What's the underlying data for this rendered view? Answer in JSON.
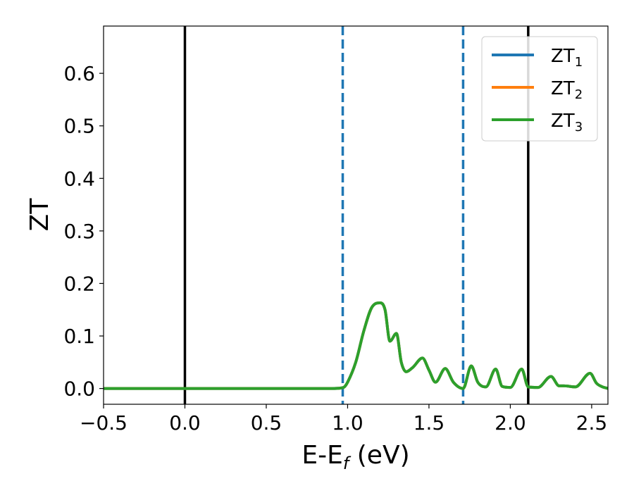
{
  "chart_data": {
    "type": "line",
    "xlabel": "E-E",
    "xlabel_sub": "f",
    "xlabel_suffix": " (eV)",
    "ylabel": "ZT",
    "xlim": [
      -0.5,
      2.6
    ],
    "ylim": [
      -0.03,
      0.69
    ],
    "xticks": [
      -0.5,
      0.0,
      0.5,
      1.0,
      1.5,
      2.0,
      2.5
    ],
    "xtick_labels": [
      "−0.5",
      "0.0",
      "0.5",
      "1.0",
      "1.5",
      "2.0",
      "2.5"
    ],
    "yticks": [
      0.0,
      0.1,
      0.2,
      0.3,
      0.4,
      0.5,
      0.6
    ],
    "ytick_labels": [
      "0.0",
      "0.1",
      "0.2",
      "0.3",
      "0.4",
      "0.5",
      "0.6"
    ],
    "legend_position": "top-right",
    "vlines": [
      {
        "x": 0.0,
        "style": "solid",
        "color": "#000000"
      },
      {
        "x": 2.11,
        "style": "solid",
        "color": "#000000"
      },
      {
        "x": 0.97,
        "style": "dashed",
        "color": "#1f77b4"
      },
      {
        "x": 1.71,
        "style": "dashed",
        "color": "#1f77b4"
      }
    ],
    "x": [
      -0.5,
      0.9,
      0.96,
      0.98,
      1.0,
      1.05,
      1.1,
      1.15,
      1.2,
      1.23,
      1.26,
      1.3,
      1.33,
      1.36,
      1.4,
      1.46,
      1.5,
      1.54,
      1.6,
      1.65,
      1.71,
      1.76,
      1.8,
      1.85,
      1.91,
      1.95,
      2.0,
      2.07,
      2.11,
      2.17,
      2.25,
      2.3,
      2.33,
      2.4,
      2.49,
      2.53,
      2.56,
      2.6
    ],
    "series": [
      {
        "name": "ZT",
        "name_sub": "1",
        "color": "#1f77b4",
        "values": [
          0.0,
          0.0,
          0.001,
          0.003,
          0.012,
          0.05,
          0.11,
          0.155,
          0.163,
          0.15,
          0.09,
          0.105,
          0.05,
          0.032,
          0.04,
          0.058,
          0.035,
          0.012,
          0.038,
          0.012,
          0.0,
          0.043,
          0.012,
          0.003,
          0.037,
          0.004,
          0.002,
          0.037,
          0.003,
          0.002,
          0.023,
          0.005,
          0.005,
          0.003,
          0.029,
          0.01,
          0.004,
          0.0
        ]
      },
      {
        "name": "ZT",
        "name_sub": "2",
        "color": "#ff7f0e",
        "values": [
          0.0,
          0.0,
          0.001,
          0.003,
          0.012,
          0.05,
          0.11,
          0.155,
          0.163,
          0.15,
          0.09,
          0.105,
          0.05,
          0.032,
          0.04,
          0.058,
          0.035,
          0.012,
          0.038,
          0.012,
          0.0,
          0.043,
          0.012,
          0.003,
          0.037,
          0.004,
          0.002,
          0.037,
          0.003,
          0.002,
          0.023,
          0.005,
          0.005,
          0.003,
          0.029,
          0.01,
          0.004,
          0.0
        ]
      },
      {
        "name": "ZT",
        "name_sub": "3",
        "color": "#2ca02c",
        "values": [
          0.0,
          0.0,
          0.001,
          0.003,
          0.012,
          0.05,
          0.11,
          0.155,
          0.163,
          0.15,
          0.09,
          0.105,
          0.05,
          0.032,
          0.04,
          0.058,
          0.035,
          0.012,
          0.038,
          0.012,
          0.0,
          0.043,
          0.012,
          0.003,
          0.037,
          0.004,
          0.002,
          0.037,
          0.003,
          0.002,
          0.023,
          0.005,
          0.005,
          0.003,
          0.029,
          0.01,
          0.004,
          0.0
        ]
      }
    ]
  }
}
